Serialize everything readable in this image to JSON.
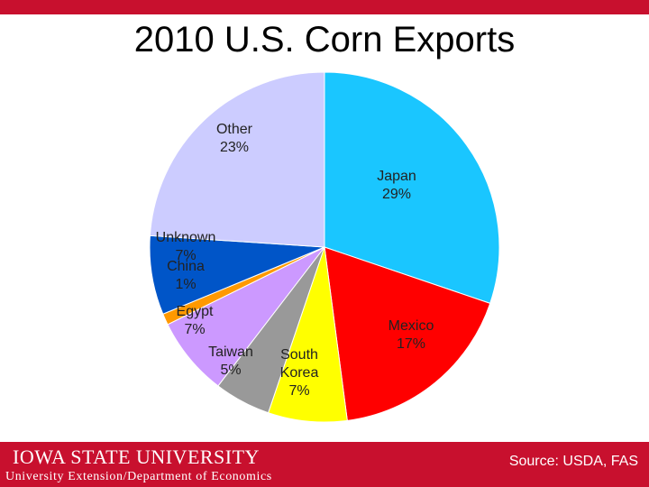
{
  "title": "2010 U.S. Corn Exports",
  "footer": {
    "logo_text": "IOWA STATE UNIVERSITY",
    "department": "University Extension/Department of Economics",
    "source": "Source: USDA, FAS"
  },
  "colors": {
    "brand_red": "#c8102e",
    "japan": "#1ac6ff",
    "mexico": "#ff0000",
    "south_korea": "#ffff00",
    "taiwan": "#999999",
    "egypt": "#cc99ff",
    "china": "#ff9900",
    "unknown": "#0055c8",
    "other": "#ccccff"
  },
  "chart_data": {
    "type": "pie",
    "title": "2010 U.S. Corn Exports",
    "slices": [
      {
        "label": "Japan",
        "value": 29,
        "pct_label": "29%",
        "color": "#1ac6ff"
      },
      {
        "label": "Mexico",
        "value": 17,
        "pct_label": "17%",
        "color": "#ff0000"
      },
      {
        "label": "South Korea",
        "value": 7,
        "pct_label": "7%",
        "color": "#ffff00",
        "label_lines": [
          "South",
          "Korea"
        ]
      },
      {
        "label": "Taiwan",
        "value": 5,
        "pct_label": "5%",
        "color": "#999999"
      },
      {
        "label": "Egypt",
        "value": 7,
        "pct_label": "7%",
        "color": "#cc99ff"
      },
      {
        "label": "China",
        "value": 1,
        "pct_label": "1%",
        "color": "#ff9900"
      },
      {
        "label": "Unknown",
        "value": 7,
        "pct_label": "7%",
        "color": "#0055c8"
      },
      {
        "label": "Other",
        "value": 23,
        "pct_label": "23%",
        "color": "#ccccff"
      }
    ]
  }
}
